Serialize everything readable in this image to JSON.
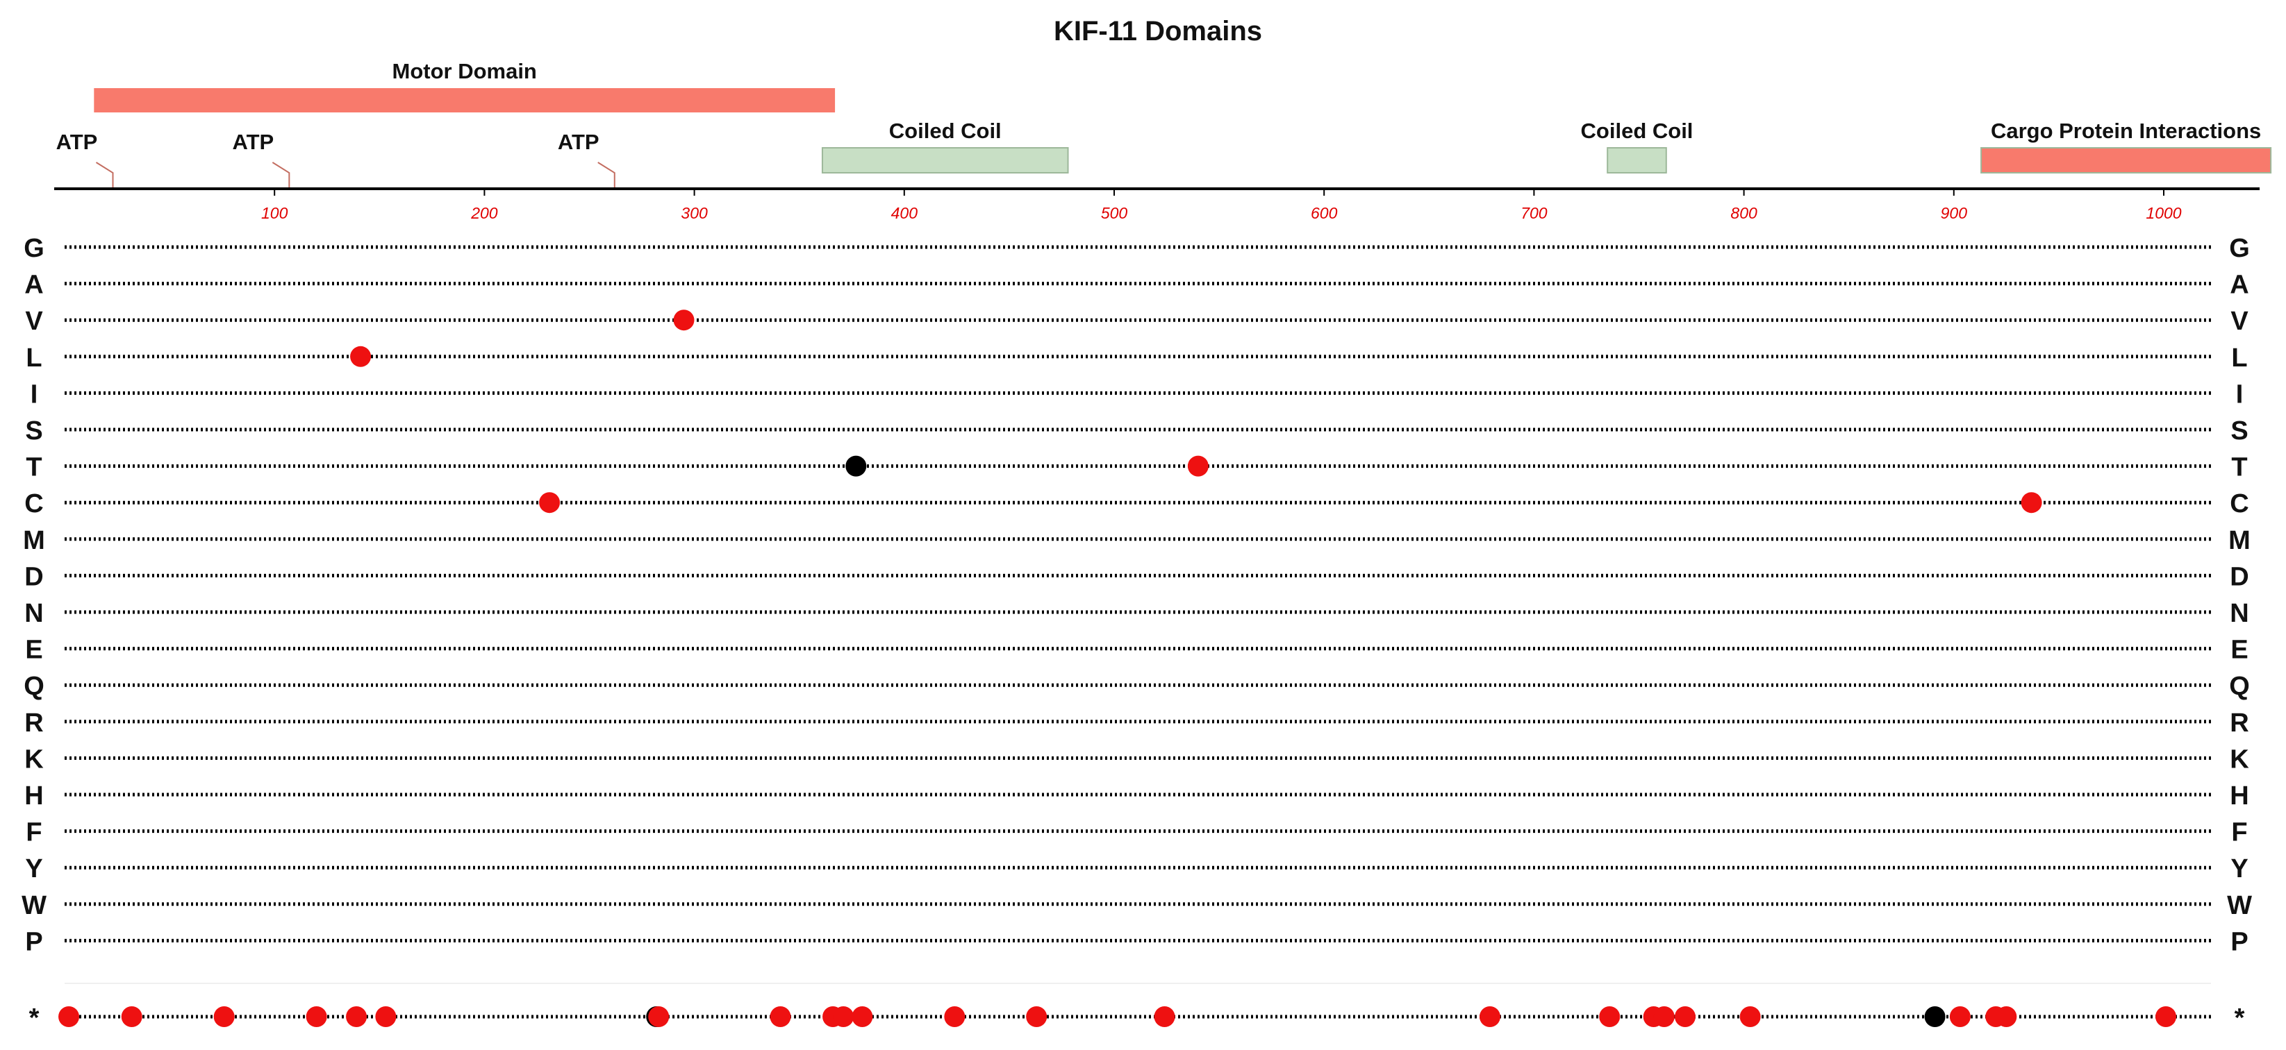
{
  "chart_data": {
    "type": "scatter",
    "title": "KIF-11 Domains",
    "xlim": [
      0,
      1056
    ],
    "xticks": [
      100,
      200,
      300,
      400,
      500,
      600,
      700,
      800,
      900,
      1000
    ],
    "tick_color": "#e00000",
    "domains": [
      {
        "label": "Motor Domain",
        "start": 14,
        "end": 367,
        "row": "upper",
        "color": "#f87a6c"
      },
      {
        "label": "Coiled Coil",
        "start": 361,
        "end": 478,
        "row": "lower",
        "color": "#c8dfc5"
      },
      {
        "label": "Coiled Coil",
        "start": 735,
        "end": 763,
        "row": "lower",
        "color": "#c8dfc5"
      },
      {
        "label": "Cargo Protein Interactions",
        "start": 913,
        "end": 1051,
        "row": "lower",
        "color": "#f87a6c"
      }
    ],
    "sites": [
      {
        "label": "ATP",
        "position": 23
      },
      {
        "label": "ATP",
        "position": 107
      },
      {
        "label": "ATP",
        "position": 262
      }
    ],
    "residues": [
      "G",
      "A",
      "V",
      "L",
      "I",
      "S",
      "T",
      "C",
      "M",
      "D",
      "N",
      "E",
      "Q",
      "R",
      "K",
      "H",
      "F",
      "Y",
      "W",
      "P",
      "*"
    ],
    "point_colors": {
      "red": "#ee1111",
      "black": "#000000"
    },
    "points": [
      {
        "residue": "V",
        "x": 295,
        "color": "red"
      },
      {
        "residue": "L",
        "x": 141,
        "color": "red"
      },
      {
        "residue": "T",
        "x": 377,
        "color": "black"
      },
      {
        "residue": "T",
        "x": 540,
        "color": "red"
      },
      {
        "residue": "C",
        "x": 231,
        "color": "red"
      },
      {
        "residue": "C",
        "x": 937,
        "color": "red"
      },
      {
        "residue": "*",
        "x": 2,
        "color": "red"
      },
      {
        "residue": "*",
        "x": 32,
        "color": "red"
      },
      {
        "residue": "*",
        "x": 76,
        "color": "red"
      },
      {
        "residue": "*",
        "x": 120,
        "color": "red"
      },
      {
        "residue": "*",
        "x": 139,
        "color": "red"
      },
      {
        "residue": "*",
        "x": 153,
        "color": "red"
      },
      {
        "residue": "*",
        "x": 282,
        "color": "black"
      },
      {
        "residue": "*",
        "x": 283,
        "color": "red"
      },
      {
        "residue": "*",
        "x": 341,
        "color": "red"
      },
      {
        "residue": "*",
        "x": 366,
        "color": "red"
      },
      {
        "residue": "*",
        "x": 371,
        "color": "red"
      },
      {
        "residue": "*",
        "x": 380,
        "color": "red"
      },
      {
        "residue": "*",
        "x": 424,
        "color": "red"
      },
      {
        "residue": "*",
        "x": 463,
        "color": "red"
      },
      {
        "residue": "*",
        "x": 524,
        "color": "red"
      },
      {
        "residue": "*",
        "x": 679,
        "color": "red"
      },
      {
        "residue": "*",
        "x": 736,
        "color": "red"
      },
      {
        "residue": "*",
        "x": 757,
        "color": "red"
      },
      {
        "residue": "*",
        "x": 762,
        "color": "red"
      },
      {
        "residue": "*",
        "x": 772,
        "color": "red"
      },
      {
        "residue": "*",
        "x": 803,
        "color": "red"
      },
      {
        "residue": "*",
        "x": 891,
        "color": "black"
      },
      {
        "residue": "*",
        "x": 903,
        "color": "red"
      },
      {
        "residue": "*",
        "x": 920,
        "color": "red"
      },
      {
        "residue": "*",
        "x": 925,
        "color": "red"
      },
      {
        "residue": "*",
        "x": 1001,
        "color": "red"
      }
    ]
  }
}
